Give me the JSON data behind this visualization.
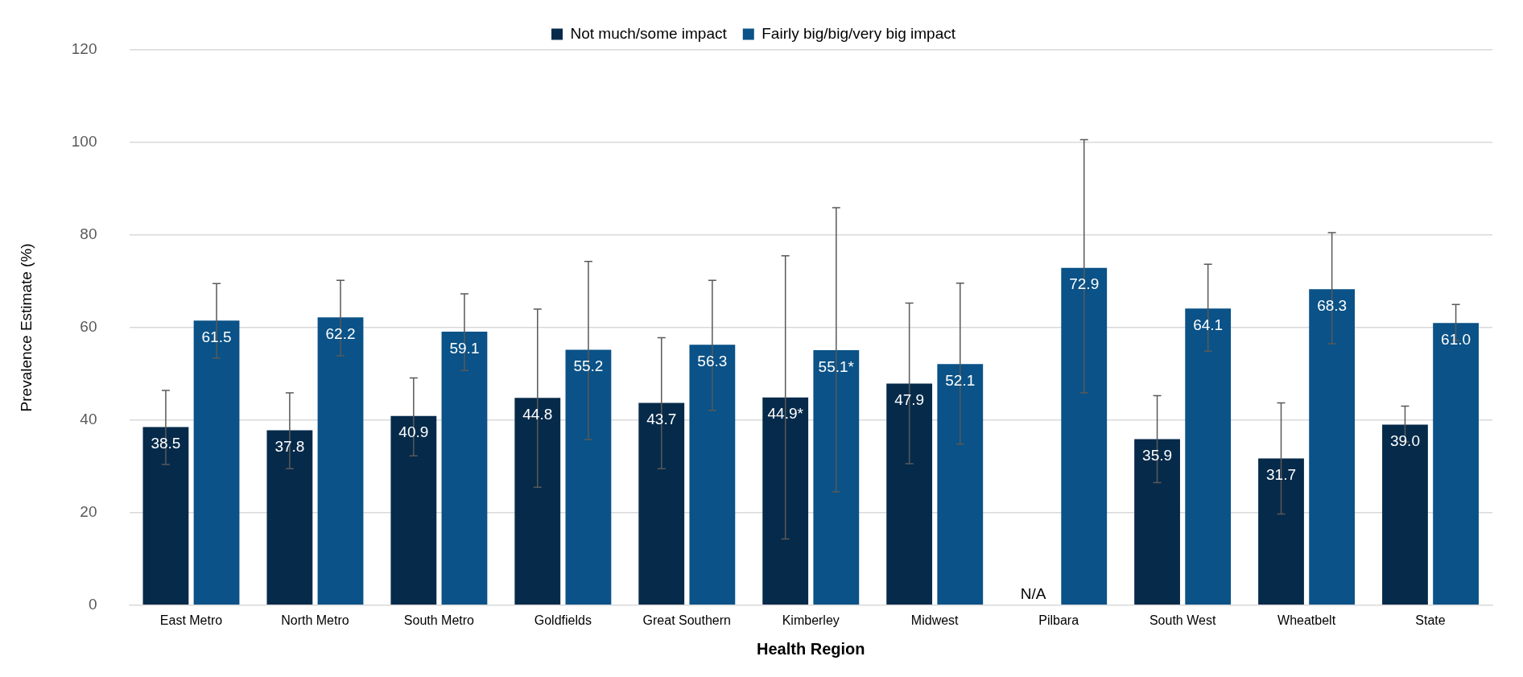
{
  "chart_data": {
    "type": "bar",
    "xlabel": "Health Region",
    "ylabel": "Prevalence Estimate (%)",
    "categories": [
      "East Metro",
      "North Metro",
      "South Metro",
      "Goldfields",
      "Great Southern",
      "Kimberley",
      "Midwest",
      "Pilbara",
      "South West",
      "Wheatbelt",
      "State"
    ],
    "series": [
      {
        "name": "Not much/some impact",
        "color": "#062a4a",
        "values": [
          38.5,
          37.8,
          40.9,
          44.8,
          43.7,
          44.9,
          47.9,
          null,
          35.9,
          31.7,
          39.0
        ],
        "value_labels": [
          "38.5",
          "37.8",
          "40.9",
          "44.8",
          "43.7",
          "44.9*",
          "47.9",
          "N/A",
          "35.9",
          "31.7",
          "39.0"
        ],
        "errors": [
          [
            30.4,
            46.4
          ],
          [
            29.5,
            45.9
          ],
          [
            32.3,
            49.1
          ],
          [
            25.5,
            64.0
          ],
          [
            29.5,
            57.8
          ],
          [
            14.3,
            75.5
          ],
          [
            30.6,
            65.3
          ],
          null,
          [
            26.5,
            45.3
          ],
          [
            19.7,
            43.7
          ],
          [
            35.3,
            43.0
          ]
        ]
      },
      {
        "name": "Fairly big/big/very big impact",
        "color": "#0a5287",
        "values": [
          61.5,
          62.2,
          59.1,
          55.2,
          56.3,
          55.1,
          52.1,
          72.9,
          64.1,
          68.3,
          61.0
        ],
        "value_labels": [
          "61.5",
          "62.2",
          "59.1",
          "55.2",
          "56.3",
          "55.1*",
          "52.1",
          "72.9",
          "64.1",
          "68.3",
          "61.0"
        ],
        "errors": [
          [
            53.4,
            69.5
          ],
          [
            53.9,
            70.2
          ],
          [
            50.7,
            67.3
          ],
          [
            35.8,
            74.3
          ],
          [
            42.1,
            70.2
          ],
          [
            24.5,
            85.9
          ],
          [
            34.8,
            69.6
          ],
          [
            45.9,
            100.6
          ],
          [
            54.9,
            73.7
          ],
          [
            56.5,
            80.5
          ],
          [
            57.2,
            65.0
          ]
        ]
      }
    ],
    "ylim": [
      0,
      120
    ],
    "yticks": [
      0,
      20,
      40,
      60,
      80,
      100,
      120
    ],
    "grid": "y",
    "legend": "top"
  }
}
